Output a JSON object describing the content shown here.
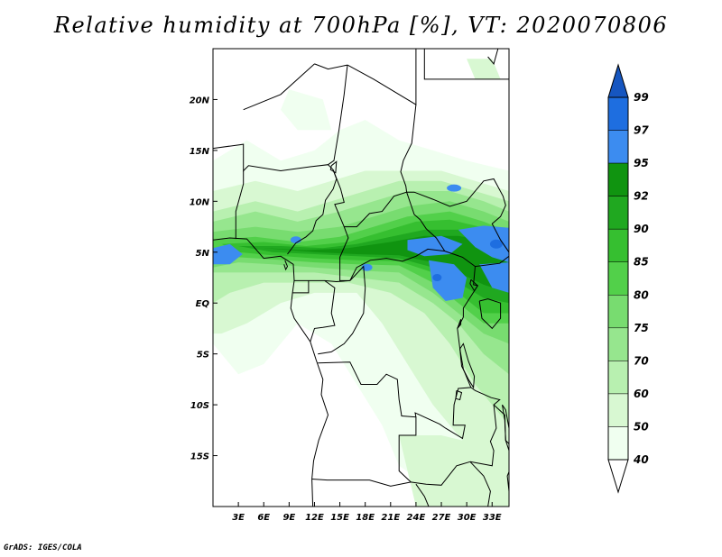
{
  "title": "Relative humidity at 700hPa [%], VT: 2020070806",
  "footer": "GrADS: IGES/COLA",
  "map": {
    "lon_range": [
      0,
      35
    ],
    "lat_range": [
      -20,
      25
    ],
    "lon_ticks": [
      {
        "lon": 3,
        "label": "3E"
      },
      {
        "lon": 6,
        "label": "6E"
      },
      {
        "lon": 9,
        "label": "9E"
      },
      {
        "lon": 12,
        "label": "12E"
      },
      {
        "lon": 15,
        "label": "15E"
      },
      {
        "lon": 18,
        "label": "18E"
      },
      {
        "lon": 21,
        "label": "21E"
      },
      {
        "lon": 24,
        "label": "24E"
      },
      {
        "lon": 27,
        "label": "27E"
      },
      {
        "lon": 30,
        "label": "30E"
      },
      {
        "lon": 33,
        "label": "33E"
      }
    ],
    "lat_ticks": [
      {
        "lat": 20,
        "label": "20N"
      },
      {
        "lat": 15,
        "label": "15N"
      },
      {
        "lat": 10,
        "label": "10N"
      },
      {
        "lat": 5,
        "label": "5N"
      },
      {
        "lat": 0,
        "label": "EQ"
      },
      {
        "lat": -5,
        "label": "5S"
      },
      {
        "lat": -10,
        "label": "10S"
      },
      {
        "lat": -15,
        "label": "15S"
      }
    ],
    "colors": {
      "40": "#f0fff0",
      "50": "#d8f8d2",
      "60": "#b8f0b0",
      "70": "#96e68e",
      "75": "#78dc70",
      "80": "#52d04a",
      "85": "#36bf30",
      "90": "#20a820",
      "92": "#109410",
      "95": "#3c8cf0",
      "97": "#1e6ee0",
      "99": "#1656c0"
    }
  },
  "colorbar": {
    "labels": [
      "99",
      "97",
      "95",
      "92",
      "90",
      "85",
      "80",
      "75",
      "70",
      "60",
      "50",
      "40"
    ],
    "colors": [
      "#1656c0",
      "#1e6ee0",
      "#3c8cf0",
      "#109410",
      "#20a820",
      "#36bf30",
      "#52d04a",
      "#78dc70",
      "#96e68e",
      "#b8f0b0",
      "#d8f8d2",
      "#f0fff0"
    ]
  }
}
